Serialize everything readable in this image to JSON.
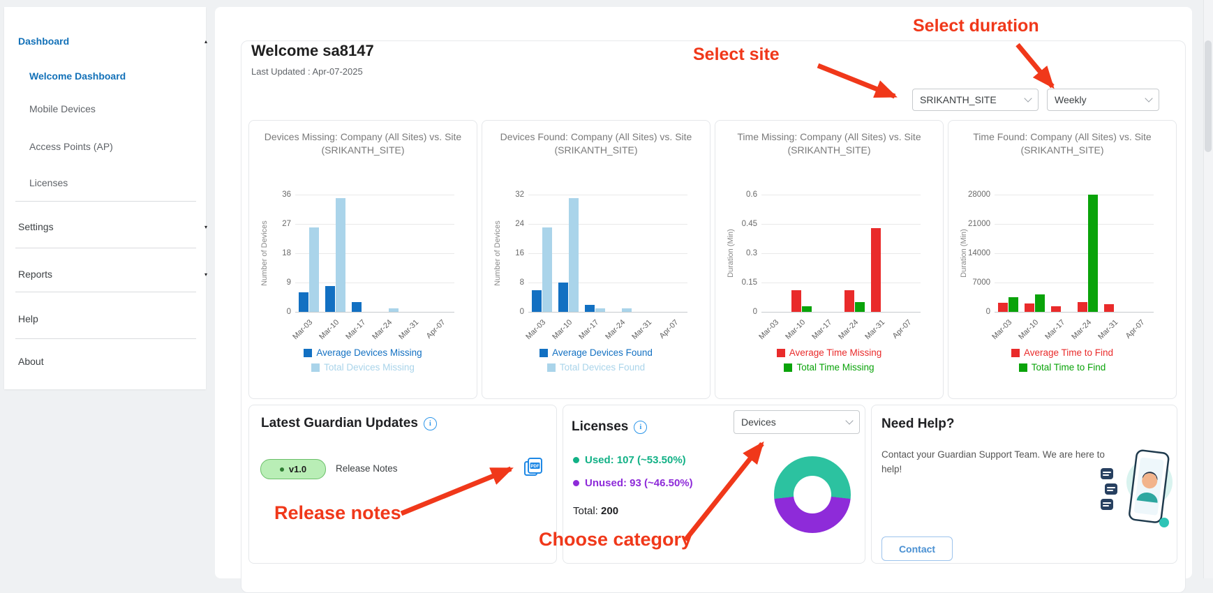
{
  "sidebar": {
    "items": [
      {
        "label": "Dashboard",
        "style": "parent-active",
        "caret": "up"
      },
      {
        "label": "Welcome Dashboard",
        "style": "active",
        "indent": true
      },
      {
        "label": "Mobile Devices",
        "style": "sub",
        "indent": true
      },
      {
        "label": "Access Points (AP)",
        "style": "sub",
        "indent": true
      },
      {
        "label": "Licenses",
        "style": "sub",
        "indent": true
      },
      {
        "label": "Settings",
        "style": "item",
        "caret": "down"
      },
      {
        "label": "Reports",
        "style": "item",
        "caret": "down"
      },
      {
        "label": "Help",
        "style": "item"
      },
      {
        "label": "About",
        "style": "item"
      }
    ]
  },
  "header": {
    "welcome": "Welcome sa8147",
    "last_updated": "Last Updated : Apr-07-2025"
  },
  "filters": {
    "site_value": "SRIKANTH_SITE",
    "duration_value": "Weekly"
  },
  "annotations": {
    "select_site": "Select site",
    "select_duration": "Select duration",
    "release_notes": "Release notes",
    "choose_category": "Choose category"
  },
  "colors": {
    "avg_blue": "#1270c2",
    "total_light_blue": "#aad4ea",
    "time_red": "#e92b2b",
    "time_green": "#0aa30a",
    "annotation_red": "#f0381a",
    "accent_blue": "#2b95e9",
    "used_teal": "#12b186",
    "unused_purple": "#8e2bd9",
    "donut_teal": "#2cc2a0",
    "donut_purple": "#8e2bd9"
  },
  "chart_data": [
    {
      "type": "bar",
      "title_line1": "Devices Missing: Company (All Sites) vs. Site",
      "title_line2": "(SRIKANTH_SITE)",
      "ylabel": "Number of Devices",
      "categories": [
        "Mar-03",
        "Mar-10",
        "Mar-17",
        "Mar-24",
        "Mar-31",
        "Apr-07"
      ],
      "yticks": [
        0,
        9,
        18,
        27,
        36
      ],
      "ylim": [
        0,
        36
      ],
      "series": [
        {
          "name": "Average Devices Missing",
          "color": "#1270c2",
          "values": [
            6,
            8,
            3,
            0,
            0,
            0
          ]
        },
        {
          "name": "Total Devices Missing",
          "color": "#aad4ea",
          "values": [
            26,
            35,
            0,
            1,
            0,
            0
          ]
        }
      ]
    },
    {
      "type": "bar",
      "title_line1": "Devices Found: Company (All Sites) vs. Site",
      "title_line2": "(SRIKANTH_SITE)",
      "ylabel": "Number of Devices",
      "categories": [
        "Mar-03",
        "Mar-10",
        "Mar-17",
        "Mar-24",
        "Mar-31",
        "Apr-07"
      ],
      "yticks": [
        0,
        8,
        16,
        24,
        32
      ],
      "ylim": [
        0,
        32
      ],
      "series": [
        {
          "name": "Average Devices Found",
          "color": "#1270c2",
          "values": [
            6,
            8,
            2,
            0,
            0,
            0
          ]
        },
        {
          "name": "Total Devices Found",
          "color": "#aad4ea",
          "values": [
            23,
            31,
            1,
            1,
            0,
            0
          ]
        }
      ]
    },
    {
      "type": "bar",
      "title_line1": "Time Missing: Company (All Sites) vs. Site",
      "title_line2": "(SRIKANTH_SITE)",
      "ylabel": "Duration (Min)",
      "categories": [
        "Mar-03",
        "Mar-10",
        "Mar-17",
        "Mar-24",
        "Mar-31",
        "Apr-07"
      ],
      "yticks": [
        0,
        0.15,
        0.3,
        0.45,
        0.6
      ],
      "ylim": [
        0,
        0.6
      ],
      "series": [
        {
          "name": "Average Time Missing",
          "color": "#e92b2b",
          "values": [
            0,
            0.11,
            0,
            0.11,
            0.43,
            0
          ]
        },
        {
          "name": "Total Time Missing",
          "color": "#0aa30a",
          "values": [
            0,
            0.03,
            0,
            0.05,
            0,
            0
          ]
        }
      ]
    },
    {
      "type": "bar",
      "title_line1": "Time Found: Company (All Sites) vs. Site",
      "title_line2": "(SRIKANTH_SITE)",
      "ylabel": "Duration (Min)",
      "categories": [
        "Mar-03",
        "Mar-10",
        "Mar-17",
        "Mar-24",
        "Mar-31",
        "Apr-07"
      ],
      "yticks": [
        0,
        7000,
        14000,
        21000,
        28000
      ],
      "ylim": [
        0,
        28000
      ],
      "series": [
        {
          "name": "Average Time to Find",
          "color": "#e92b2b",
          "values": [
            2200,
            2000,
            1300,
            2300,
            1800,
            0
          ]
        },
        {
          "name": "Total Time to Find",
          "color": "#0aa30a",
          "values": [
            3500,
            4200,
            0,
            28000,
            0,
            0
          ]
        }
      ]
    },
    {
      "type": "pie",
      "title": "Licenses",
      "category": "Devices",
      "labels": [
        "Used",
        "Unused"
      ],
      "values": [
        107,
        93
      ],
      "percents": [
        53.5,
        46.5
      ],
      "total": 200,
      "colors": [
        "#2cc2a0",
        "#8e2bd9"
      ]
    }
  ],
  "cards": {
    "updates": {
      "title": "Latest Guardian Updates",
      "version": "v1.0",
      "release_notes_label": "Release Notes"
    },
    "licenses": {
      "title": "Licenses",
      "category_value": "Devices",
      "used_text": "Used: 107 (~53.50%)",
      "unused_text": "Unused: 93 (~46.50%)",
      "total_label": "Total:",
      "total_value": "200"
    },
    "help": {
      "title": "Need Help?",
      "body": "Contact your Guardian Support Team. We are here to help!",
      "button_label": "Contact"
    }
  }
}
